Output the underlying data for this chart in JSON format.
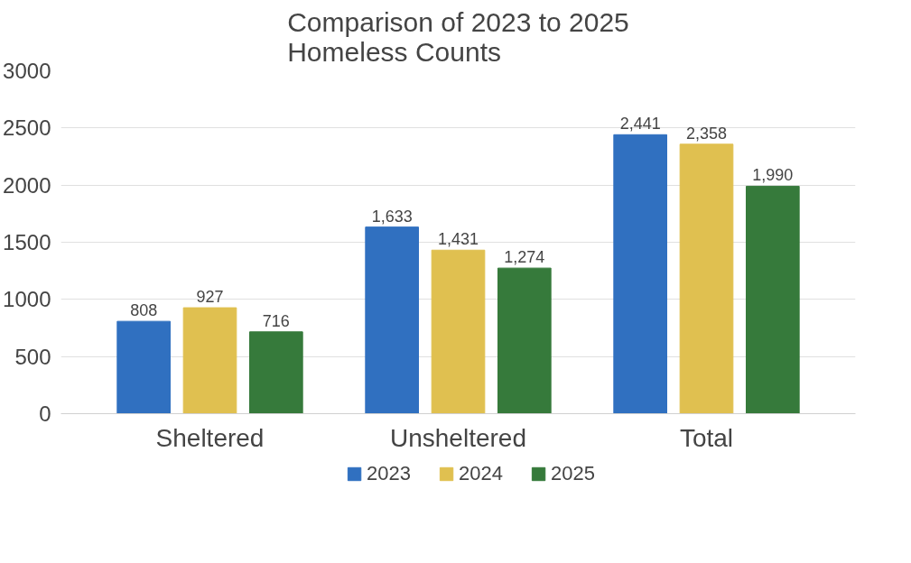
{
  "chart_data": {
    "type": "bar",
    "title": "Comparison of 2023 to 2025\nHomeless Counts",
    "categories": [
      "Sheltered",
      "Unsheltered",
      "Total"
    ],
    "series": [
      {
        "name": "2023",
        "color": "#3070c0",
        "values": [
          808,
          1633,
          2441
        ],
        "value_labels": [
          "808",
          "1,633",
          "2,441"
        ]
      },
      {
        "name": "2024",
        "color": "#e0c050",
        "values": [
          927,
          1431,
          2358
        ],
        "value_labels": [
          "927",
          "1,431",
          "2,358"
        ]
      },
      {
        "name": "2025",
        "color": "#367a3b",
        "values": [
          716,
          1274,
          1990
        ],
        "value_labels": [
          "716",
          "1,274",
          "1,990"
        ]
      }
    ],
    "ylim": [
      0,
      3000
    ],
    "yticks": [
      0,
      500,
      1000,
      1500,
      2000,
      2500,
      3000
    ],
    "grid": "y",
    "legend": "bottom"
  }
}
